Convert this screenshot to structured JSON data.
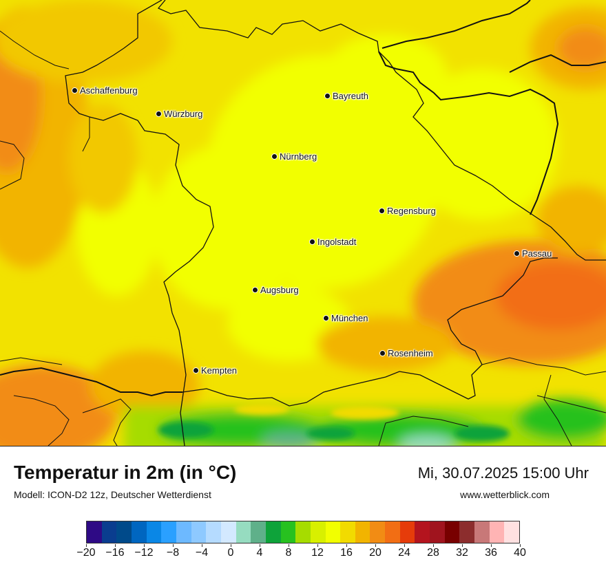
{
  "map": {
    "cities": [
      {
        "name": "Aschaffenburg"
      },
      {
        "name": "Würzburg"
      },
      {
        "name": "Bayreuth"
      },
      {
        "name": "Nürnberg"
      },
      {
        "name": "Regensburg"
      },
      {
        "name": "Ingolstadt"
      },
      {
        "name": "Passau"
      },
      {
        "name": "Augsburg"
      },
      {
        "name": "München"
      },
      {
        "name": "Rosenheim"
      },
      {
        "name": "Kempten"
      }
    ]
  },
  "footer": {
    "title": "Temperatur in 2m (in °C)",
    "model": "Modell: ICON-D2 12z, Deutscher Wetterdienst",
    "datetime": "Mi, 30.07.2025 15:00 Uhr",
    "website": "www.wetterblick.com"
  },
  "legend": {
    "colors": [
      "#2e0a85",
      "#0a3d8f",
      "#004a8a",
      "#0066c0",
      "#0a87e6",
      "#2aa0ff",
      "#6db9ff",
      "#8ec9ff",
      "#b5dbff",
      "#d3e9ff",
      "#96dcc0",
      "#5fb08a",
      "#0ea33a",
      "#27c11f",
      "#a6dc00",
      "#d8f000",
      "#f2ff00",
      "#f2db00",
      "#f2b400",
      "#f28c14",
      "#f26e14",
      "#e63c0a",
      "#b4141e",
      "#a0141e",
      "#780000",
      "#8c2d2d",
      "#c87878",
      "#ffb4b4",
      "#ffe1e1"
    ],
    "tick_labels": [
      "−20",
      "−16",
      "−12",
      "−8",
      "−4",
      "0",
      "4",
      "8",
      "12",
      "16",
      "20",
      "24",
      "28",
      "32",
      "36",
      "40"
    ]
  }
}
